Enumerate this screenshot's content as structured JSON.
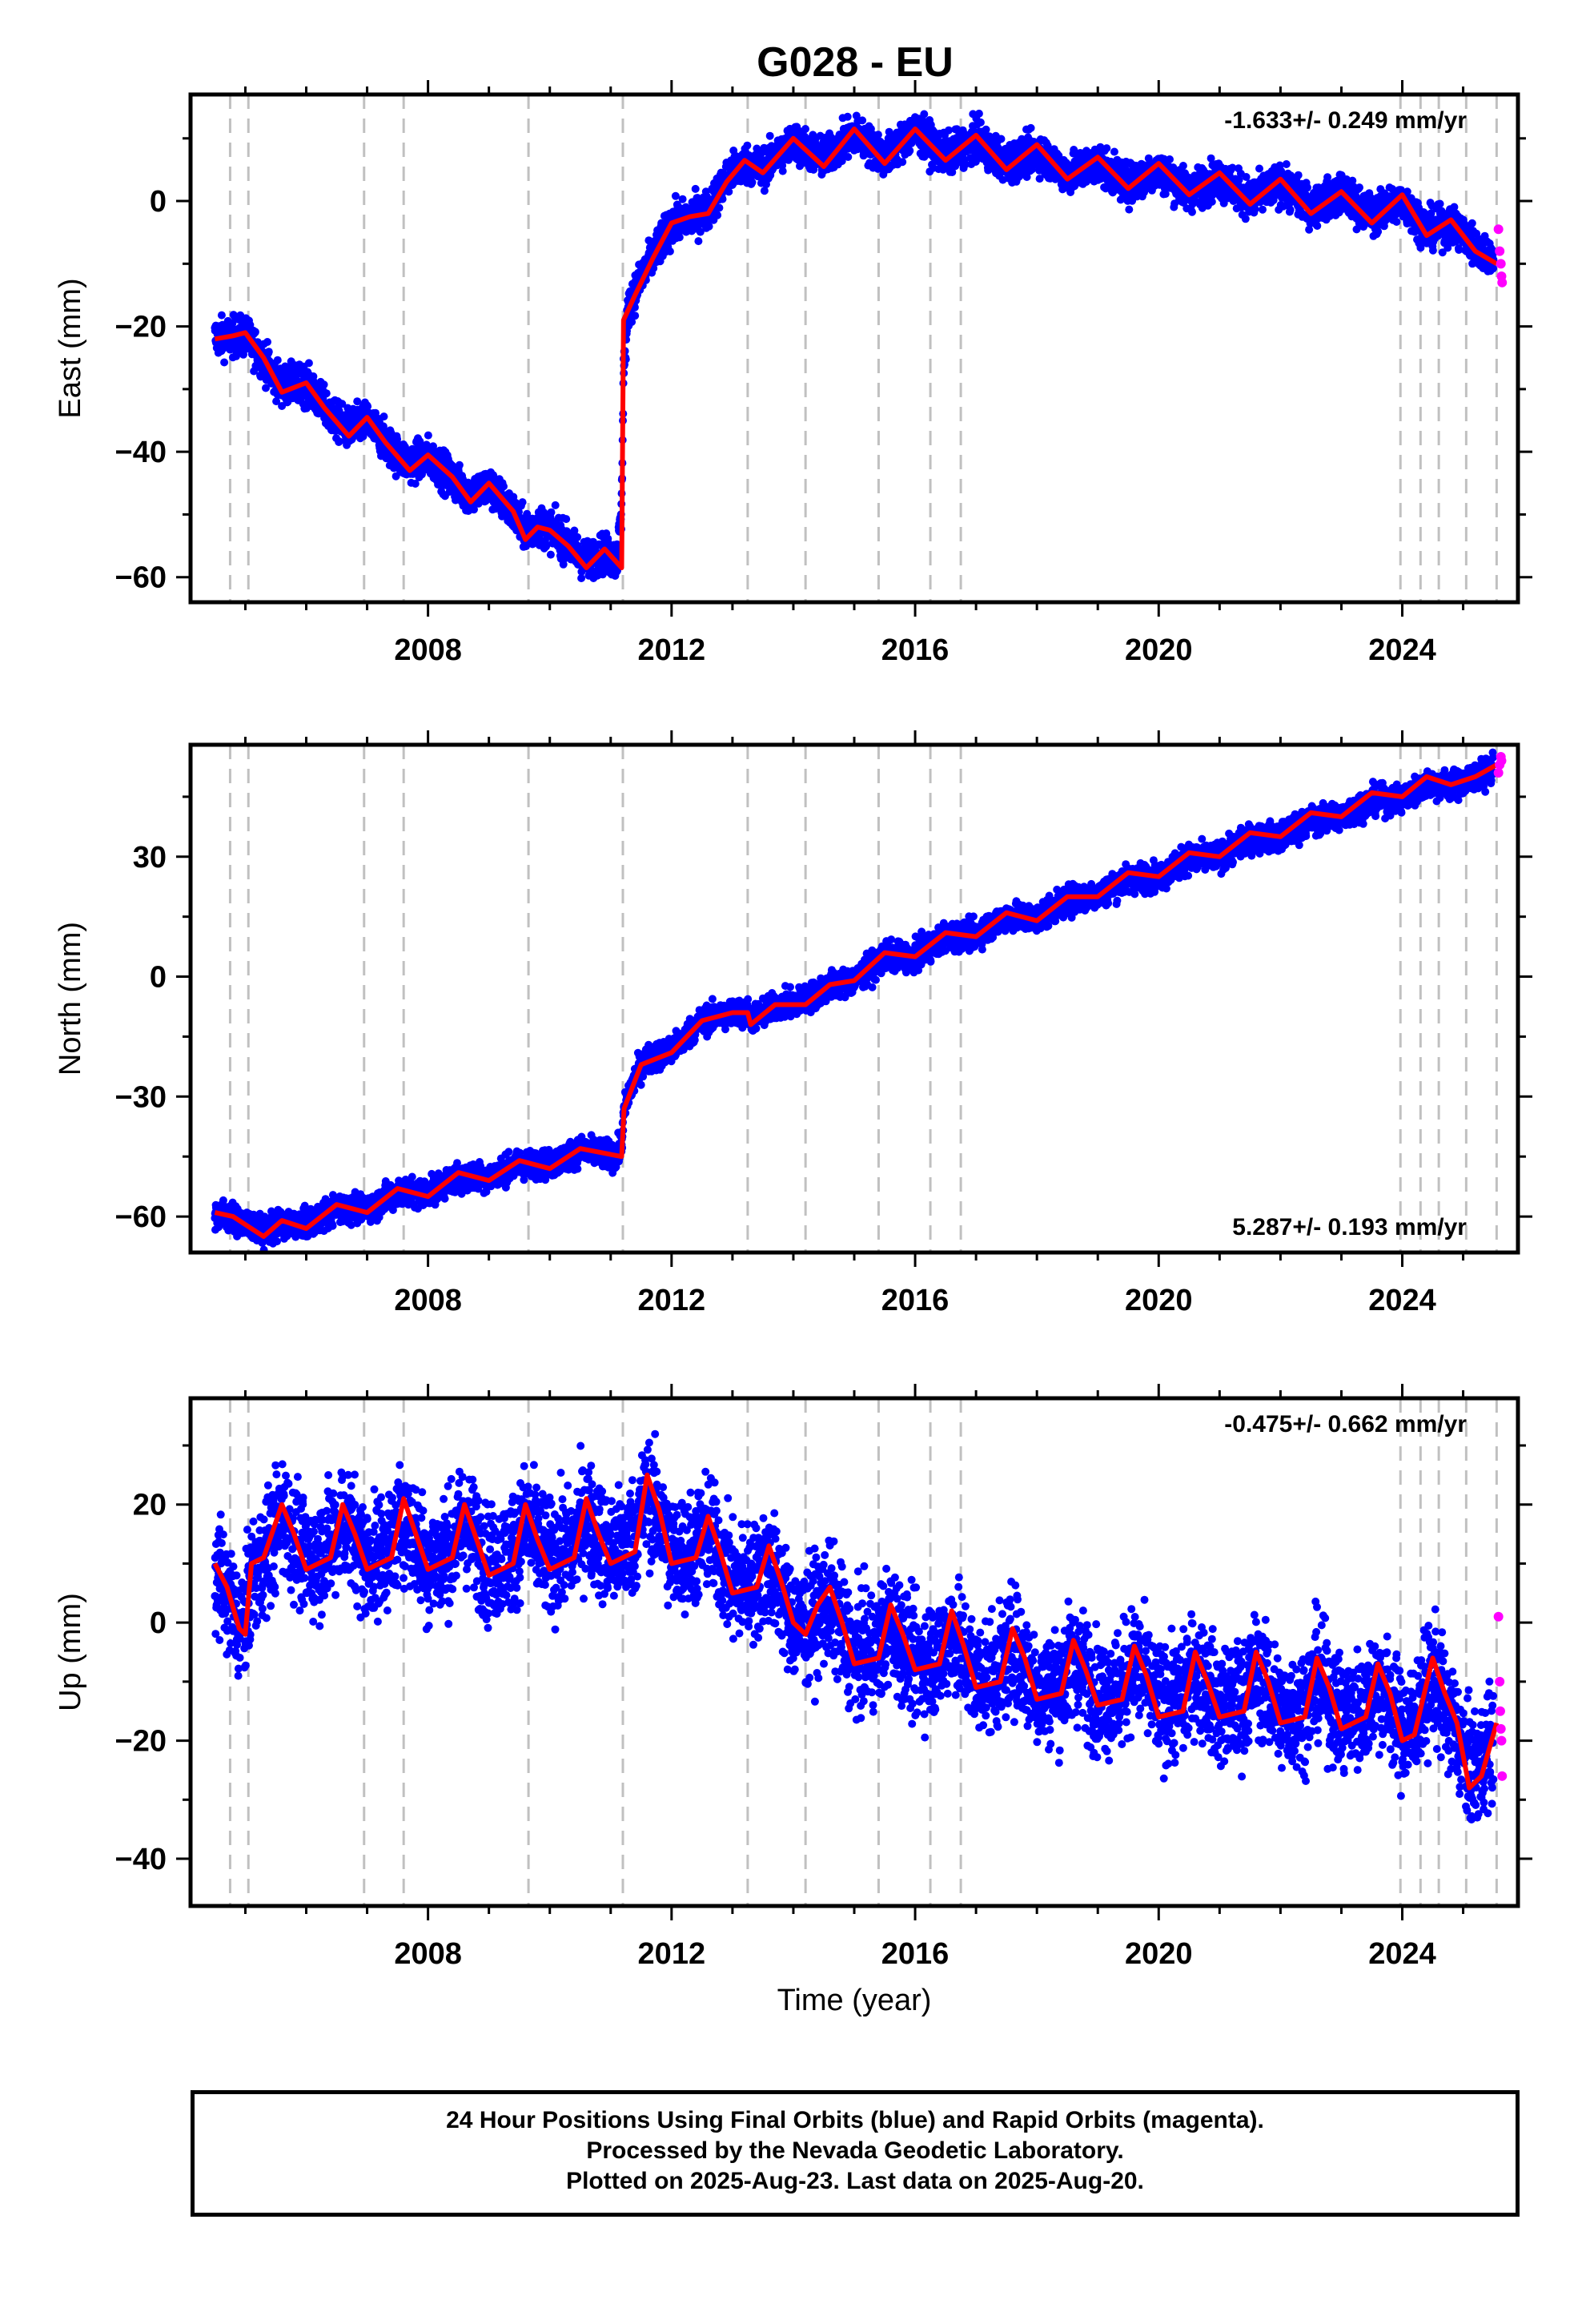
{
  "title": "G028 - EU",
  "colors": {
    "final": "#0000ff",
    "rapid": "#ff00ff",
    "model": "#ff0000",
    "events": "#c0c0c0"
  },
  "caption": {
    "line1": "24 Hour Positions Using Final Orbits (blue) and Rapid Orbits (magenta).",
    "line2": "Processed by the Nevada Geodetic Laboratory.",
    "line3": "Plotted on 2025-Aug-23. Last data on 2025-Aug-20."
  },
  "chart_data": [
    {
      "type": "scatter",
      "ylabel": "East (mm)",
      "xlabel": "",
      "rate": "-1.633+/- 0.249 mm/yr",
      "rate_position": "top-right",
      "xlim": [
        2004.1,
        2025.9
      ],
      "ylim": [
        -64,
        17
      ],
      "xticks": [
        2008,
        2012,
        2016,
        2020,
        2024
      ],
      "yticks": [
        -60,
        -40,
        -20,
        0
      ],
      "event_lines": [
        2004.75,
        2005.05,
        2006.95,
        2007.6,
        2009.65,
        2011.2,
        2013.25,
        2014.2,
        2015.4,
        2016.25,
        2016.75,
        2023.97,
        2024.3,
        2024.6,
        2025.05,
        2025.55
      ],
      "series": [
        {
          "role": "model",
          "x": [
            2004.5,
            2004.8,
            2005.0,
            2005.3,
            2005.6,
            2006.0,
            2006.3,
            2006.7,
            2007.0,
            2007.3,
            2007.7,
            2008.0,
            2008.4,
            2008.7,
            2009.0,
            2009.4,
            2009.6,
            2009.8,
            2010.0,
            2010.3,
            2010.6,
            2010.9,
            2011.18,
            2011.21,
            2011.4,
            2011.7,
            2012.0,
            2012.3,
            2012.6,
            2012.9,
            2013.2,
            2013.5,
            2014.0,
            2014.5,
            2015.0,
            2015.5,
            2016.0,
            2016.5,
            2017.0,
            2017.5,
            2018.0,
            2018.5,
            2019.0,
            2019.5,
            2020.0,
            2020.5,
            2021.0,
            2021.5,
            2022.0,
            2022.5,
            2023.0,
            2023.5,
            2024.0,
            2024.4,
            2024.8,
            2025.2,
            2025.55
          ],
          "y": [
            -22,
            -21.5,
            -21,
            -25,
            -30.5,
            -29,
            -33,
            -37.5,
            -34.5,
            -38.5,
            -43,
            -40.5,
            -44,
            -48,
            -45,
            -49.5,
            -54,
            -52,
            -52.5,
            -55,
            -58.5,
            -55.5,
            -58.5,
            -19,
            -15,
            -9,
            -3.5,
            -2.5,
            -2,
            3,
            6.5,
            4.5,
            10,
            5.5,
            11.5,
            6,
            11.5,
            6.5,
            10.5,
            5,
            9,
            3.5,
            7,
            2,
            6,
            1,
            4.5,
            -0.5,
            3.5,
            -2,
            1.5,
            -3.5,
            1,
            -5.5,
            -3,
            -8,
            -10
          ]
        },
        {
          "role": "final",
          "x": [
            2004.5,
            2005.0,
            2005.5,
            2006.0,
            2006.5,
            2007.0,
            2007.5,
            2008.0,
            2008.5,
            2009.0,
            2009.5,
            2010.0,
            2010.5,
            2011.1,
            2011.3,
            2011.6,
            2012.0,
            2012.5,
            2013.0,
            2013.5,
            2014.0,
            2014.5,
            2015.0,
            2015.5,
            2016.0,
            2016.5,
            2017.0,
            2017.5,
            2018.0,
            2018.5,
            2019.0,
            2019.5,
            2020.0,
            2020.5,
            2021.0,
            2021.5,
            2022.0,
            2022.5,
            2023.0,
            2023.5,
            2024.0,
            2024.5,
            2025.0,
            2025.5
          ],
          "y": [
            -21.5,
            -22,
            -28,
            -29.5,
            -35,
            -35.5,
            -40.5,
            -41,
            -45.5,
            -46,
            -51,
            -52,
            -56,
            -57,
            -16,
            -10,
            -4,
            -2,
            5,
            6,
            9,
            8,
            10,
            8,
            11,
            8,
            9,
            7,
            7,
            5,
            5,
            3,
            4,
            2,
            3,
            1,
            2,
            0,
            1,
            -1,
            -1,
            -4,
            -5,
            -9
          ],
          "spread": 2.2
        },
        {
          "role": "rapid",
          "x": [
            2025.58,
            2025.6,
            2025.62,
            2025.63,
            2025.64
          ],
          "y": [
            -4.5,
            -8,
            -10,
            -12,
            -13
          ]
        }
      ]
    },
    {
      "type": "scatter",
      "ylabel": "North (mm)",
      "xlabel": "",
      "rate": "5.287+/- 0.193 mm/yr",
      "rate_position": "bottom-right",
      "xlim": [
        2004.1,
        2025.9
      ],
      "ylim": [
        -69,
        58
      ],
      "xticks": [
        2008,
        2012,
        2016,
        2020,
        2024
      ],
      "yticks": [
        -60,
        -30,
        0,
        30
      ],
      "event_lines": [
        2004.75,
        2005.05,
        2006.95,
        2007.6,
        2009.65,
        2011.2,
        2013.25,
        2014.2,
        2015.4,
        2016.25,
        2016.75,
        2023.97,
        2024.3,
        2024.6,
        2025.05,
        2025.55
      ],
      "series": [
        {
          "role": "model",
          "x": [
            2004.5,
            2004.8,
            2005.0,
            2005.3,
            2005.6,
            2006.0,
            2006.5,
            2007.0,
            2007.5,
            2008.0,
            2008.5,
            2009.0,
            2009.5,
            2010.0,
            2010.5,
            2011.18,
            2011.22,
            2011.5,
            2012.0,
            2012.5,
            2013.0,
            2013.25,
            2013.3,
            2013.7,
            2014.2,
            2014.6,
            2015.0,
            2015.5,
            2016.0,
            2016.5,
            2017.0,
            2017.5,
            2018.0,
            2018.5,
            2019.0,
            2019.5,
            2020.0,
            2020.5,
            2021.0,
            2021.5,
            2022.0,
            2022.5,
            2023.0,
            2023.5,
            2024.0,
            2024.4,
            2024.8,
            2025.2,
            2025.55
          ],
          "y": [
            -59,
            -60,
            -62,
            -65,
            -61,
            -63,
            -57,
            -59,
            -53,
            -55,
            -49,
            -51,
            -46,
            -48,
            -43,
            -45,
            -33,
            -22,
            -19,
            -11,
            -9,
            -9,
            -12,
            -7,
            -7,
            -2,
            -1,
            6,
            5,
            11,
            10,
            16,
            14,
            20,
            20,
            26,
            25,
            31,
            30,
            36,
            35,
            41,
            40,
            46,
            45,
            50,
            48,
            50,
            53
          ]
        },
        {
          "role": "final",
          "x": [
            2004.5,
            2005.0,
            2005.5,
            2006.0,
            2006.5,
            2007.0,
            2007.5,
            2008.0,
            2008.5,
            2009.0,
            2009.5,
            2010.0,
            2010.5,
            2011.1,
            2011.3,
            2011.6,
            2012.0,
            2012.5,
            2013.0,
            2013.5,
            2014.0,
            2014.5,
            2015.0,
            2015.5,
            2016.0,
            2016.5,
            2017.0,
            2017.5,
            2018.0,
            2018.5,
            2019.0,
            2019.5,
            2020.0,
            2020.5,
            2021.0,
            2021.5,
            2022.0,
            2022.5,
            2023.0,
            2023.5,
            2024.0,
            2024.5,
            2025.0,
            2025.5
          ],
          "y": [
            -59,
            -62,
            -63,
            -61,
            -59,
            -57,
            -55,
            -53,
            -51,
            -49,
            -48,
            -46,
            -44,
            -45,
            -28,
            -20,
            -18,
            -11,
            -9,
            -9,
            -6,
            -3,
            -1,
            4,
            5,
            9,
            11,
            14,
            15,
            18,
            21,
            23,
            25,
            28,
            30,
            33,
            35,
            37,
            40,
            42,
            44,
            47,
            48,
            51
          ],
          "spread": 2.5
        },
        {
          "role": "rapid",
          "x": [
            2025.58,
            2025.6,
            2025.62,
            2025.63
          ],
          "y": [
            51,
            53,
            55,
            54
          ]
        }
      ]
    },
    {
      "type": "scatter",
      "ylabel": "Up (mm)",
      "xlabel": "Time (year)",
      "rate": "-0.475+/- 0.662 mm/yr",
      "rate_position": "top-right",
      "xlim": [
        2004.1,
        2025.9
      ],
      "ylim": [
        -48,
        38
      ],
      "xticks": [
        2008,
        2012,
        2016,
        2020,
        2024
      ],
      "yticks": [
        -40,
        -20,
        0,
        20
      ],
      "event_lines": [
        2004.75,
        2005.05,
        2006.95,
        2007.6,
        2009.65,
        2011.2,
        2013.25,
        2014.2,
        2015.4,
        2016.25,
        2016.75,
        2023.97,
        2024.3,
        2024.6,
        2025.05,
        2025.55
      ],
      "series": [
        {
          "role": "model",
          "x": [
            2004.5,
            2004.7,
            2004.9,
            2005.0,
            2005.1,
            2005.3,
            2005.6,
            2005.8,
            2006.0,
            2006.4,
            2006.6,
            2006.8,
            2007.0,
            2007.4,
            2007.6,
            2007.8,
            2008.0,
            2008.4,
            2008.6,
            2008.8,
            2009.0,
            2009.4,
            2009.6,
            2009.8,
            2010.0,
            2010.4,
            2010.6,
            2010.8,
            2011.0,
            2011.4,
            2011.6,
            2011.8,
            2012.0,
            2012.4,
            2012.6,
            2012.8,
            2013.0,
            2013.4,
            2013.6,
            2013.8,
            2014.0,
            2014.2,
            2014.4,
            2014.6,
            2014.8,
            2015.0,
            2015.4,
            2015.6,
            2015.8,
            2016.0,
            2016.4,
            2016.6,
            2016.8,
            2017.0,
            2017.4,
            2017.6,
            2017.8,
            2018.0,
            2018.4,
            2018.6,
            2018.8,
            2019.0,
            2019.4,
            2019.6,
            2019.8,
            2020.0,
            2020.4,
            2020.6,
            2020.8,
            2021.0,
            2021.4,
            2021.6,
            2021.8,
            2022.0,
            2022.4,
            2022.6,
            2022.8,
            2023.0,
            2023.4,
            2023.6,
            2023.8,
            2024.0,
            2024.2,
            2024.5,
            2024.7,
            2024.9,
            2025.1,
            2025.3,
            2025.55
          ],
          "y": [
            10,
            6,
            -1,
            -2,
            10,
            11,
            20,
            15,
            9,
            11,
            20,
            15,
            9,
            11,
            21,
            15,
            9,
            11,
            20,
            14,
            8,
            10,
            20,
            14,
            9,
            11,
            21,
            15,
            10,
            12,
            25,
            19,
            10,
            11,
            18,
            12,
            5,
            6,
            13,
            7,
            0,
            -2,
            3,
            6,
            0,
            -7,
            -6,
            3,
            -2,
            -8,
            -7,
            2,
            -4,
            -11,
            -10,
            -1,
            -6,
            -13,
            -12,
            -3,
            -8,
            -14,
            -13,
            -4,
            -9,
            -16,
            -15,
            -5,
            -10,
            -16,
            -15,
            -5,
            -10,
            -17,
            -16,
            -6,
            -11,
            -18,
            -16,
            -7,
            -12,
            -20,
            -19,
            -6,
            -12,
            -17,
            -28,
            -26,
            -17
          ]
        },
        {
          "role": "final",
          "x": [
            2004.5,
            2004.9,
            2005.3,
            2005.6,
            2006.0,
            2006.5,
            2007.0,
            2007.5,
            2008.0,
            2008.5,
            2009.0,
            2009.5,
            2010.0,
            2010.5,
            2011.0,
            2011.5,
            2012.0,
            2012.5,
            2013.0,
            2013.5,
            2014.0,
            2014.5,
            2015.0,
            2015.5,
            2016.0,
            2016.5,
            2017.0,
            2017.5,
            2018.0,
            2018.5,
            2019.0,
            2019.5,
            2020.0,
            2020.5,
            2021.0,
            2021.5,
            2022.0,
            2022.5,
            2023.0,
            2023.5,
            2024.0,
            2024.5,
            2025.0,
            2025.5
          ],
          "y": [
            8,
            0,
            10,
            17,
            11,
            16,
            11,
            16,
            11,
            15,
            11,
            15,
            12,
            16,
            13,
            19,
            13,
            14,
            8,
            8,
            0,
            1,
            -4,
            -2,
            -6,
            -4,
            -8,
            -6,
            -10,
            -8,
            -11,
            -9,
            -12,
            -10,
            -13,
            -11,
            -14,
            -12,
            -14,
            -12,
            -17,
            -12,
            -22,
            -20
          ],
          "spread": 7.0
        },
        {
          "role": "rapid",
          "x": [
            2025.58,
            2025.6,
            2025.61,
            2025.62,
            2025.63,
            2025.64
          ],
          "y": [
            1,
            -10,
            -15,
            -18,
            -20,
            -26
          ]
        }
      ]
    }
  ]
}
